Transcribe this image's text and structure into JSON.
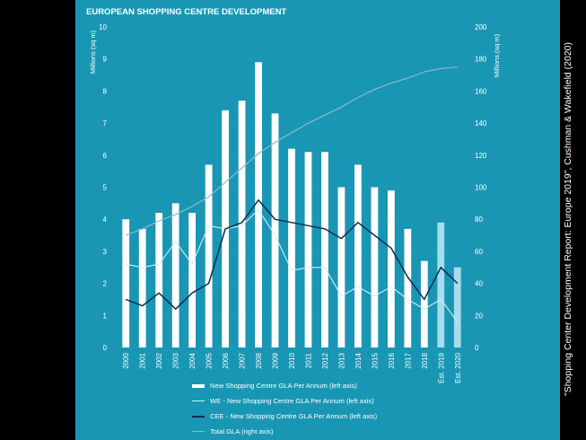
{
  "side_credit": "\"Shopping Center Development Report: Europe 2019\", Cushman & Wakefield (2020)",
  "colors": {
    "panel": "#1996b4",
    "bar": "#ffffff",
    "bar_est": "#a6dceb",
    "we": "#d2eef6",
    "cee": "#0e2c4e",
    "total": "#8fb8c4",
    "text": "#ffffff"
  },
  "chart_data": {
    "type": "bar",
    "title": "EUROPEAN SHOPPING CENTRE DEVELOPMENT",
    "ylabel": "Millions (sq m)",
    "y2label": "Millions (sq m)",
    "ylim": [
      0,
      10
    ],
    "y2lim": [
      0,
      200
    ],
    "yticks": [
      "0",
      "1",
      "2",
      "3",
      "4",
      "5",
      "6",
      "7",
      "8",
      "9",
      "10"
    ],
    "y2ticks": [
      "0",
      "20",
      "40",
      "60",
      "80",
      "100",
      "120",
      "140",
      "160",
      "180",
      "200"
    ],
    "categories": [
      "2000",
      "2001",
      "2002",
      "2003",
      "2004",
      "2005",
      "2006",
      "2007",
      "2008",
      "2009",
      "2010",
      "2011",
      "2012",
      "2013",
      "2014",
      "2015",
      "2016",
      "2017",
      "2018",
      "Est. 2019",
      "Est. 2020"
    ],
    "estimated": [
      false,
      false,
      false,
      false,
      false,
      false,
      false,
      false,
      false,
      false,
      false,
      false,
      false,
      false,
      false,
      false,
      false,
      false,
      false,
      true,
      true
    ],
    "series": [
      {
        "name": "New Shopping Centre GLA Per Annum (left axis)",
        "kind": "bar",
        "values": [
          4.0,
          3.7,
          4.2,
          4.5,
          4.2,
          5.7,
          7.4,
          7.7,
          8.9,
          7.3,
          6.2,
          6.1,
          6.1,
          5.0,
          5.7,
          5.0,
          4.9,
          3.7,
          2.7,
          3.9,
          2.5
        ]
      },
      {
        "name": "WE - New Shopping Centre GLA Per Annum (left axis)",
        "kind": "line",
        "values": [
          2.6,
          2.5,
          2.6,
          3.3,
          2.6,
          3.8,
          3.7,
          3.8,
          4.3,
          3.5,
          2.4,
          2.5,
          2.5,
          1.6,
          1.9,
          1.6,
          1.9,
          1.5,
          1.2,
          1.5,
          0.8
        ]
      },
      {
        "name": "CEE - New Shopping Centre GLA Per Annum (left axis)",
        "kind": "line",
        "values": [
          1.5,
          1.3,
          1.7,
          1.2,
          1.7,
          2.0,
          3.7,
          3.9,
          4.6,
          4.0,
          3.9,
          3.8,
          3.7,
          3.4,
          3.9,
          3.5,
          3.1,
          2.2,
          1.5,
          2.5,
          2.0
        ]
      },
      {
        "name": "Total GLA (right axis)",
        "kind": "line",
        "axis": "right",
        "values": [
          70,
          74,
          79,
          83,
          88,
          94,
          103,
          112,
          121,
          128,
          134,
          140,
          145,
          150,
          156,
          161,
          165,
          168,
          172,
          174,
          175
        ]
      }
    ]
  }
}
